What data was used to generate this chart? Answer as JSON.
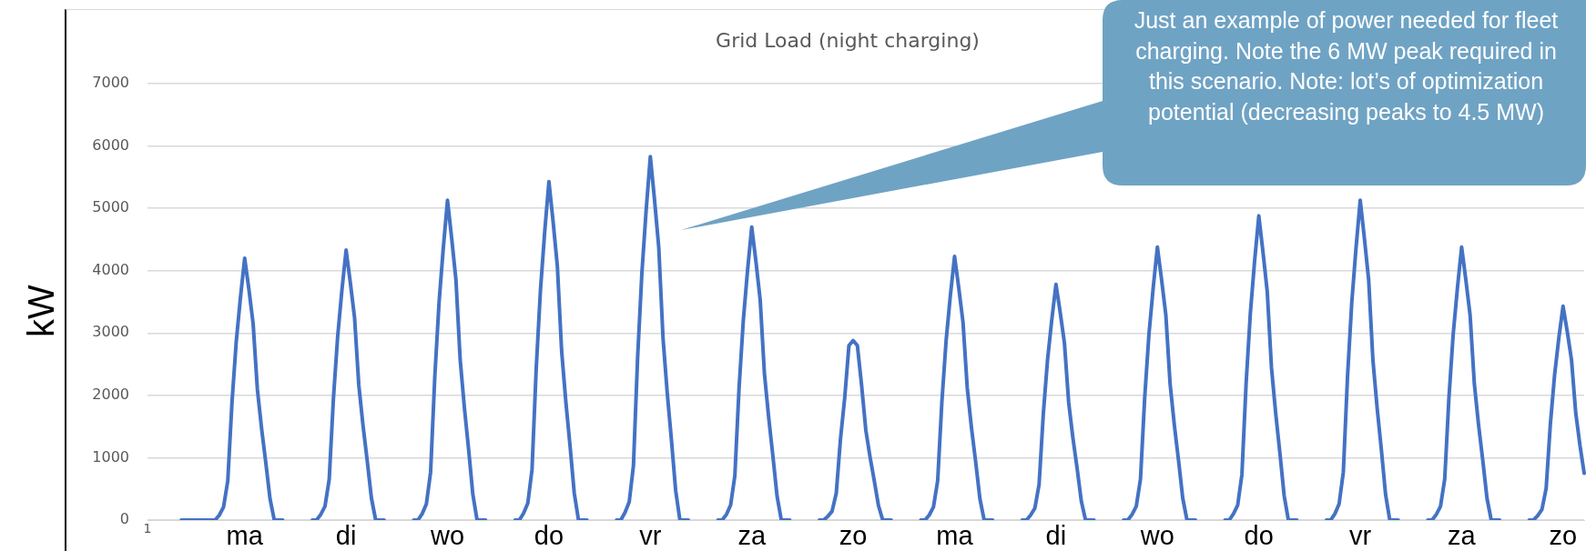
{
  "chart_data": {
    "type": "line",
    "title": "Grid Load (night charging)",
    "ylabel": "kW",
    "annotations": [
      "Just an example of power needed for fleet charging. Note the 6 MW peak required in this scenario. Note: lot’s of optimization potential (decreasing peaks to 4.5 MW)"
    ],
    "color": "#4472c4",
    "ylim": [
      0,
      7000
    ],
    "yticks": [
      0,
      1000,
      2000,
      3000,
      4000,
      5000,
      6000,
      7000
    ],
    "grid": "y",
    "categories": [
      "1",
      null,
      null,
      null,
      null,
      null,
      null,
      null,
      null,
      null,
      null,
      null,
      null,
      null,
      null,
      null,
      null,
      null,
      null,
      null,
      null,
      null,
      null,
      "ma",
      null,
      null,
      null,
      null,
      null,
      null,
      null,
      null,
      null,
      null,
      null,
      null,
      null,
      null,
      null,
      null,
      null,
      null,
      null,
      null,
      null,
      null,
      null,
      "di",
      null,
      null,
      null,
      null,
      null,
      null,
      null,
      null,
      null,
      null,
      null,
      null,
      null,
      null,
      null,
      null,
      null,
      null,
      null,
      null,
      null,
      null,
      null,
      "wo",
      null,
      null,
      null,
      null,
      null,
      null,
      null,
      null,
      null,
      null,
      null,
      null,
      null,
      null,
      null,
      null,
      null,
      null,
      null,
      null,
      null,
      null,
      null,
      "do",
      null,
      null,
      null,
      null,
      null,
      null,
      null,
      null,
      null,
      null,
      null,
      null,
      null,
      null,
      null,
      null,
      null,
      null,
      null,
      null,
      null,
      null,
      null,
      "vr",
      null,
      null,
      null,
      null,
      null,
      null,
      null,
      null,
      null,
      null,
      null,
      null,
      null,
      null,
      null,
      null,
      null,
      null,
      null,
      null,
      null,
      null,
      null,
      "za",
      null,
      null,
      null,
      null,
      null,
      null,
      null,
      null,
      null,
      null,
      null,
      null,
      null,
      null,
      null,
      null,
      null,
      null,
      null,
      null,
      null,
      null,
      null,
      "zo",
      null,
      null,
      null,
      null,
      null,
      null,
      null,
      null,
      null,
      null,
      null,
      null,
      null,
      null,
      null,
      null,
      null,
      null,
      null,
      null,
      null,
      null,
      null,
      "ma",
      null,
      null,
      null,
      null,
      null,
      null,
      null,
      null,
      null,
      null,
      null,
      null,
      null,
      null,
      null,
      null,
      null,
      null,
      null,
      null,
      null,
      null,
      null,
      "di",
      null,
      null,
      null,
      null,
      null,
      null,
      null,
      null,
      null,
      null,
      null,
      null,
      null,
      null,
      null,
      null,
      null,
      null,
      null,
      null,
      null,
      null,
      null,
      "wo",
      null,
      null,
      null,
      null,
      null,
      null,
      null,
      null,
      null,
      null,
      null,
      null,
      null,
      null,
      null,
      null,
      null,
      null,
      null,
      null,
      null,
      null,
      null,
      "do",
      null,
      null,
      null,
      null,
      null,
      null,
      null,
      null,
      null,
      null,
      null,
      null,
      null,
      null,
      null,
      null,
      null,
      null,
      null,
      null,
      null,
      null,
      null,
      "vr",
      null,
      null,
      null,
      null,
      null,
      null,
      null,
      null,
      null,
      null,
      null,
      null,
      null,
      null,
      null,
      null,
      null,
      null,
      null,
      null,
      null,
      null,
      null,
      "za",
      null,
      null,
      null,
      null,
      null,
      null,
      null,
      null,
      null,
      null,
      null,
      null,
      null,
      null,
      null,
      null,
      null,
      null,
      null,
      null,
      null,
      null,
      null,
      "zo",
      null,
      null,
      null,
      null,
      null
    ],
    "values": [
      null,
      null,
      null,
      null,
      null,
      null,
      null,
      null,
      0,
      0,
      0,
      0,
      0,
      0,
      0,
      0,
      0,
      80,
      210,
      630,
      1890,
      2860,
      3570,
      4200,
      3700,
      3150,
      2100,
      1470,
      920,
      340,
      0,
      0,
      0,
      null,
      null,
      null,
      null,
      null,
      null,
      0,
      0,
      90,
      220,
      650,
      1950,
      2940,
      3680,
      4330,
      3810,
      3250,
      2170,
      1520,
      950,
      350,
      0,
      0,
      0,
      null,
      null,
      null,
      null,
      null,
      null,
      0,
      0,
      100,
      260,
      770,
      2310,
      3490,
      4360,
      5130,
      4510,
      3850,
      2570,
      1800,
      1130,
      410,
      0,
      0,
      0,
      null,
      null,
      null,
      null,
      null,
      null,
      0,
      0,
      110,
      270,
      810,
      2440,
      3690,
      4620,
      5430,
      4780,
      4070,
      2720,
      1900,
      1190,
      430,
      0,
      0,
      0,
      null,
      null,
      null,
      null,
      null,
      null,
      0,
      0,
      120,
      290,
      870,
      2620,
      3960,
      4960,
      5830,
      5130,
      4370,
      2920,
      2040,
      1280,
      470,
      0,
      0,
      0,
      null,
      null,
      null,
      null,
      null,
      null,
      0,
      0,
      90,
      240,
      710,
      2120,
      3200,
      4000,
      4700,
      4140,
      3530,
      2350,
      1650,
      1030,
      380,
      0,
      0,
      0,
      null,
      null,
      null,
      null,
      null,
      null,
      0,
      0,
      60,
      140,
      430,
      1300,
      1960,
      2800,
      2880,
      2800,
      2160,
      1440,
      1010,
      630,
      230,
      0,
      0,
      0,
      null,
      null,
      null,
      null,
      null,
      null,
      0,
      0,
      80,
      210,
      630,
      1900,
      2880,
      3600,
      4230,
      3720,
      3170,
      2120,
      1480,
      930,
      340,
      0,
      0,
      0,
      null,
      null,
      null,
      null,
      null,
      null,
      0,
      0,
      80,
      190,
      570,
      1700,
      2570,
      3210,
      3780,
      3330,
      2840,
      1890,
      1320,
      830,
      300,
      0,
      0,
      0,
      null,
      null,
      null,
      null,
      null,
      null,
      0,
      0,
      90,
      220,
      660,
      1970,
      2980,
      3720,
      4380,
      3850,
      3290,
      2190,
      1530,
      960,
      350,
      0,
      0,
      0,
      null,
      null,
      null,
      null,
      null,
      null,
      0,
      0,
      100,
      240,
      730,
      2200,
      3320,
      4150,
      4880,
      4290,
      3660,
      2440,
      1710,
      1070,
      390,
      0,
      0,
      0,
      null,
      null,
      null,
      null,
      null,
      null,
      0,
      0,
      100,
      260,
      770,
      2310,
      3490,
      4360,
      5130,
      4510,
      3850,
      2570,
      1800,
      1130,
      410,
      0,
      0,
      0,
      null,
      null,
      null,
      null,
      null,
      null,
      0,
      0,
      90,
      220,
      660,
      1970,
      2980,
      3720,
      4380,
      3850,
      3290,
      2190,
      1530,
      960,
      350,
      0,
      0,
      0,
      null,
      null,
      null,
      null,
      null,
      null,
      0,
      0,
      70,
      170,
      510,
      1540,
      2330,
      2920,
      3430,
      3020,
      2570,
      1720,
      1200,
      750
    ]
  }
}
